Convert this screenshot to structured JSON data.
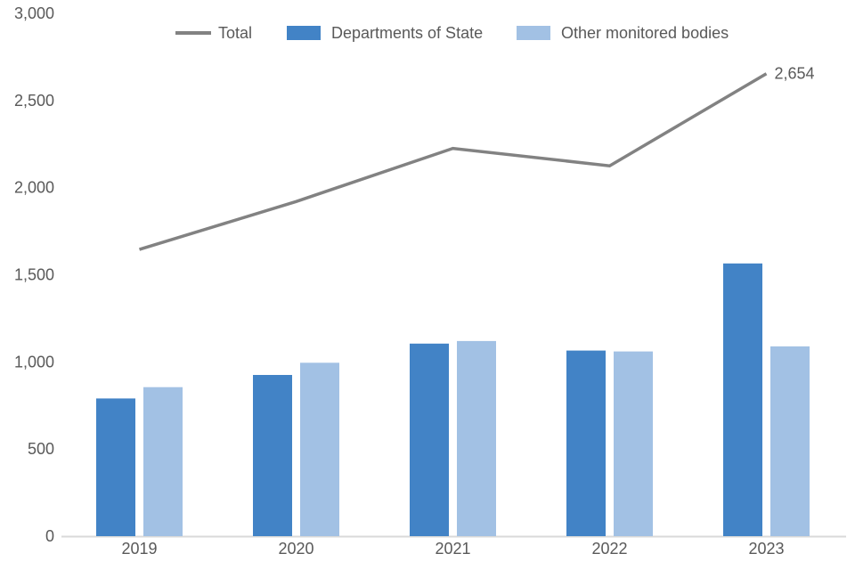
{
  "chart_data": {
    "type": "combo",
    "categories": [
      "2019",
      "2020",
      "2021",
      "2022",
      "2023"
    ],
    "series": [
      {
        "name": "Total",
        "type": "line",
        "color": "#828282",
        "values": [
          1645,
          1920,
          2225,
          2125,
          2654
        ]
      },
      {
        "name": "Departments of State",
        "type": "bar",
        "color": "#4283C6",
        "values": [
          790,
          925,
          1105,
          1065,
          1565
        ]
      },
      {
        "name": "Other monitored bodies",
        "type": "bar",
        "color": "#A2C1E4",
        "values": [
          855,
          995,
          1120,
          1060,
          1089
        ]
      }
    ],
    "title": "",
    "xlabel": "",
    "ylabel": "",
    "ylim": [
      0,
      3000
    ],
    "ytick_values": [
      0,
      500,
      1000,
      1500,
      2000,
      2500,
      3000
    ],
    "ytick_labels": [
      "0",
      "500",
      "1,000",
      "1,500",
      "2,000",
      "2,500",
      "3,000"
    ],
    "grid": false,
    "legend_position": "top",
    "annotation": {
      "series": "Total",
      "category": "2023",
      "text": "2,654"
    }
  },
  "colors": {
    "axis_line": "#D9D9D9",
    "tick_text": "#595959"
  }
}
